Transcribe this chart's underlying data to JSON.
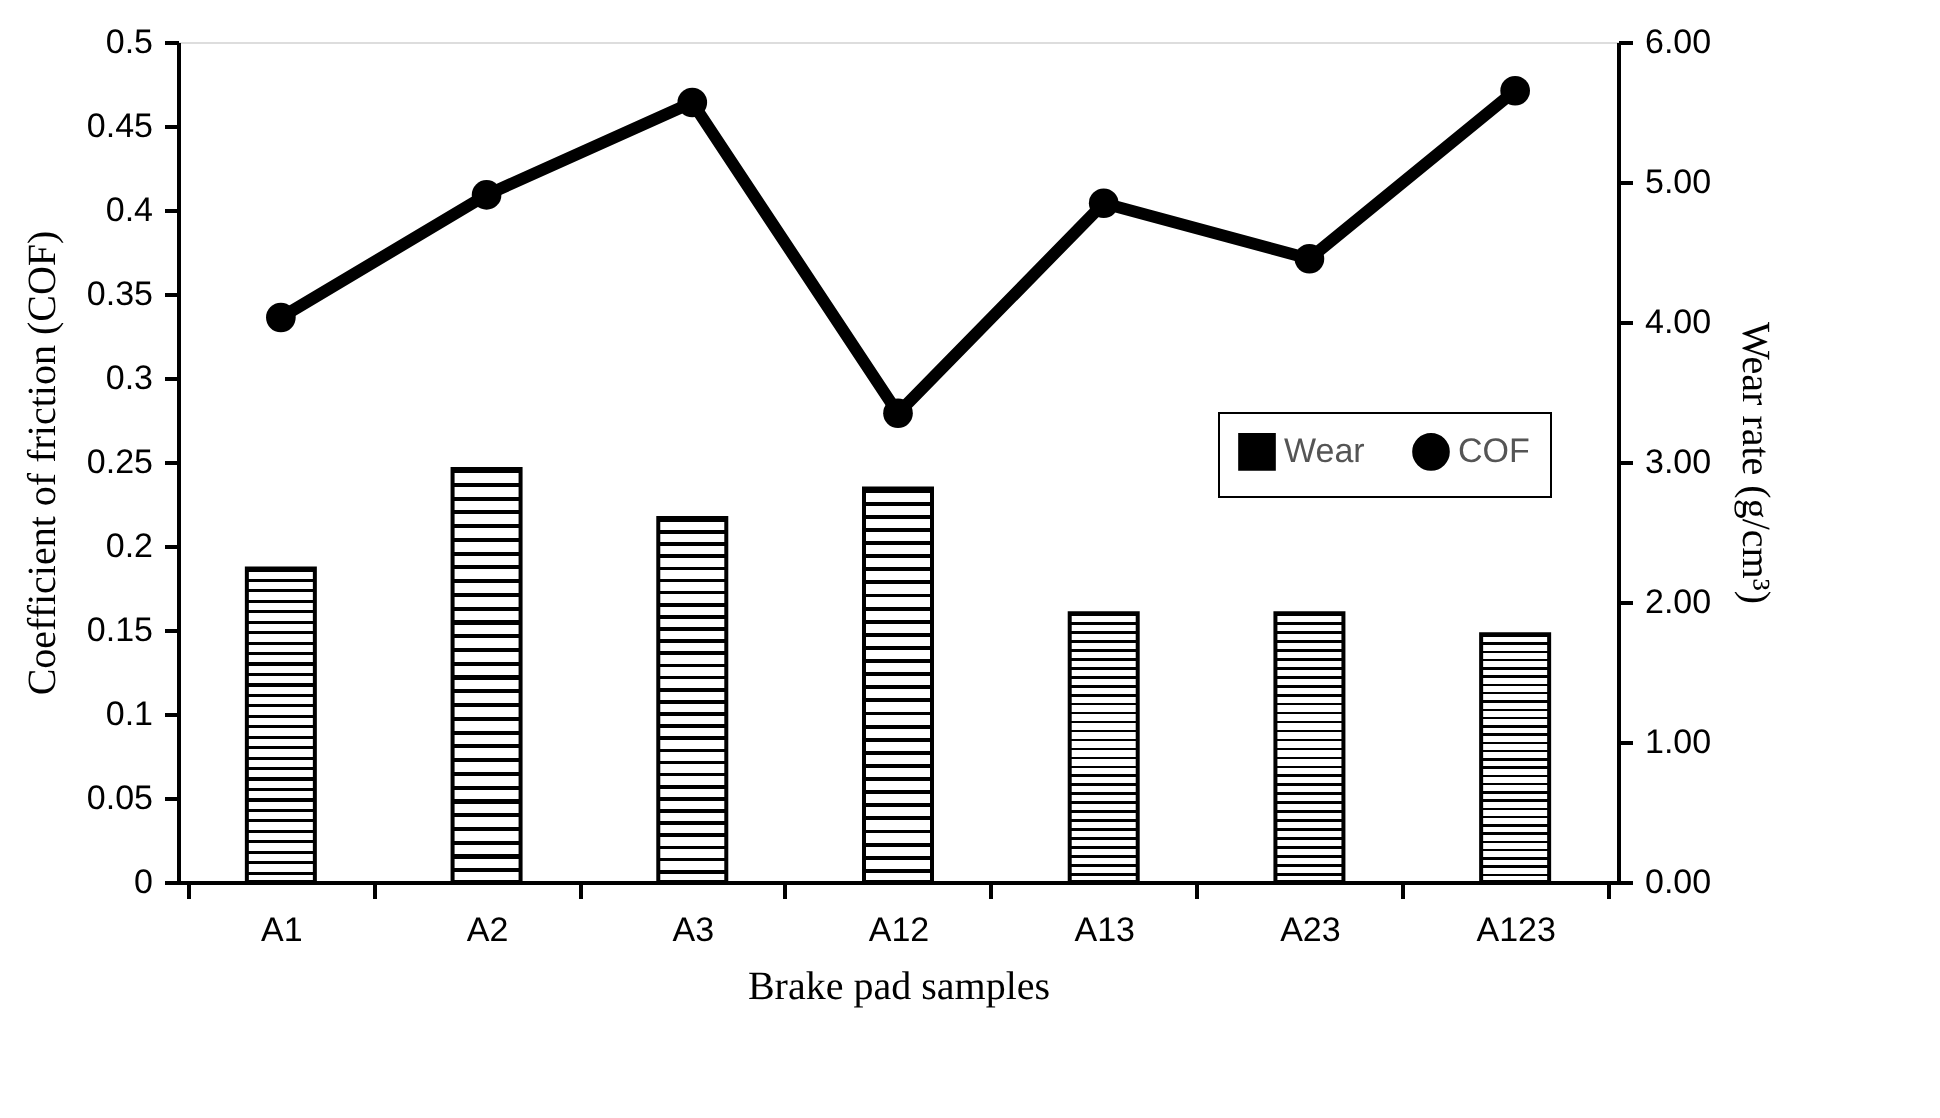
{
  "chart_data": {
    "type": "bar",
    "xlabel": "Brake pad samples",
    "ylabel": "Coefficient of friction (COF)",
    "y2label": "Wear rate (g/cm³)",
    "categories": [
      "A1",
      "A2",
      "A3",
      "A12",
      "A13",
      "A23",
      "A123"
    ],
    "series": [
      {
        "name": "Wear",
        "axis": "y2",
        "color": "#000000",
        "values": [
          2.24,
          2.95,
          2.6,
          2.81,
          1.92,
          1.92,
          1.77
        ]
      },
      {
        "name": "COF",
        "type": "line",
        "axis": "y",
        "color": "#000000",
        "marker": "circle",
        "line_style": "solid",
        "values": [
          0.336,
          0.409,
          0.464,
          0.279,
          0.404,
          0.371,
          0.471
        ]
      }
    ],
    "ylim": [
      0,
      0.5
    ],
    "yticks": [
      0,
      0.05,
      0.1,
      0.15,
      0.2,
      0.25,
      0.3,
      0.35,
      0.4,
      0.45,
      0.5
    ],
    "y2lim": [
      0,
      6
    ],
    "y2ticks": [
      {
        "value": 0,
        "label": "0.00"
      },
      {
        "value": 1,
        "label": "1.00"
      },
      {
        "value": 2,
        "label": "2.00"
      },
      {
        "value": 3,
        "label": "3.00"
      },
      {
        "value": 4,
        "label": "4.00"
      },
      {
        "value": 5,
        "label": "5.00"
      },
      {
        "value": 6,
        "label": "6.00"
      }
    ],
    "grid": false,
    "legend": "right"
  }
}
